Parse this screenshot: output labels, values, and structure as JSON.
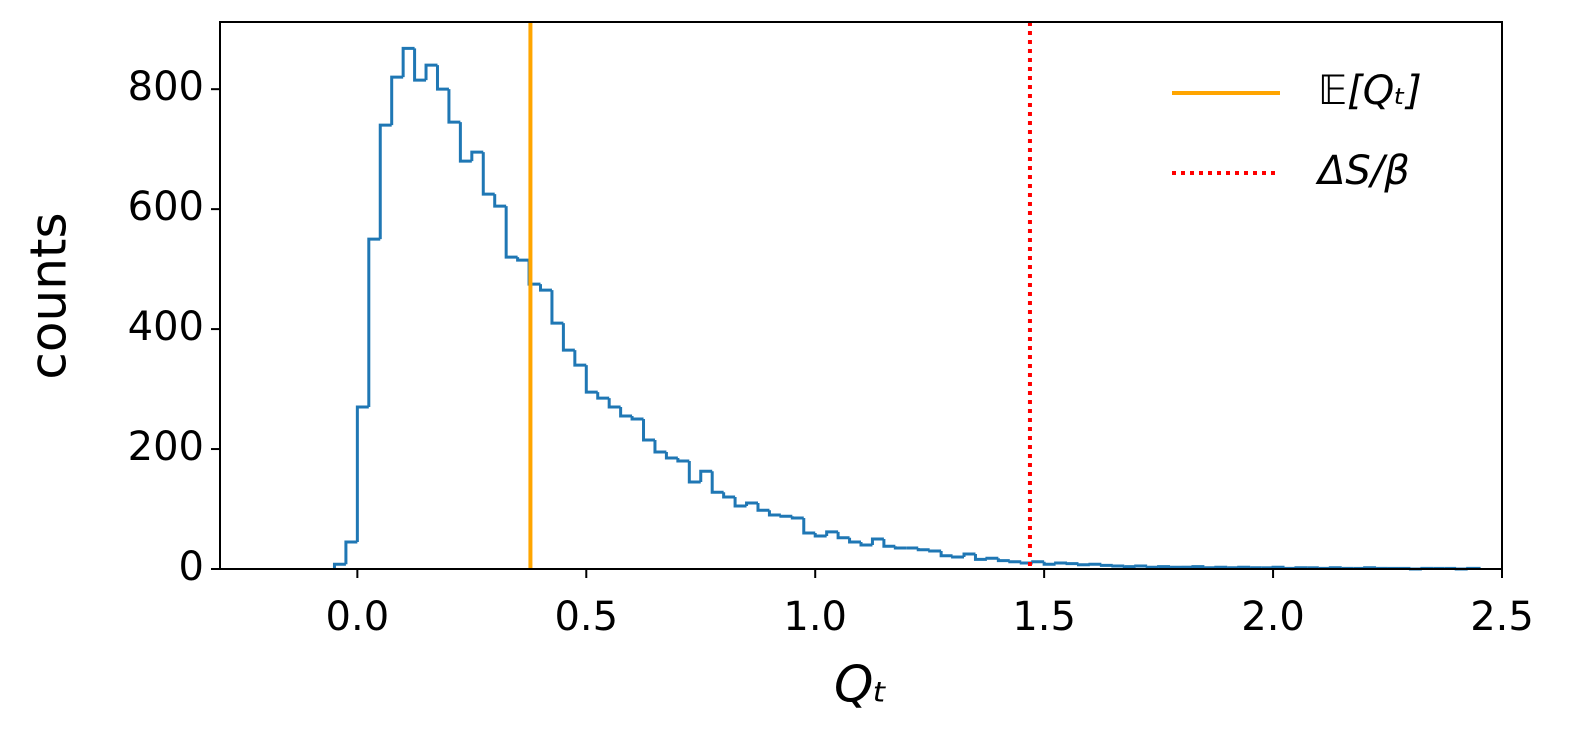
{
  "chart_data": {
    "type": "histogram",
    "xlabel": "Qₜ",
    "ylabel": "counts",
    "bins": [
      -0.05,
      -0.025,
      0,
      0.025,
      0.05,
      0.075,
      0.1,
      0.125,
      0.15,
      0.175,
      0.2,
      0.225,
      0.25,
      0.275,
      0.3,
      0.325,
      0.35,
      0.375,
      0.4,
      0.425,
      0.45,
      0.475,
      0.5,
      0.525,
      0.55,
      0.575,
      0.6,
      0.625,
      0.65,
      0.675,
      0.7,
      0.725,
      0.75,
      0.775,
      0.8,
      0.825,
      0.85,
      0.875,
      0.9,
      0.925,
      0.95,
      0.975,
      1.0,
      1.025,
      1.05,
      1.075,
      1.1,
      1.125,
      1.15,
      1.175,
      1.2,
      1.225,
      1.25,
      1.275,
      1.3,
      1.325,
      1.35,
      1.375,
      1.4,
      1.425,
      1.45,
      1.475,
      1.5,
      1.525,
      1.55,
      1.575,
      1.6,
      1.625,
      1.65,
      1.675,
      1.7,
      1.725,
      1.75,
      1.775,
      1.8,
      1.825,
      1.85,
      1.875,
      1.9,
      1.925,
      1.95,
      1.975,
      2.0,
      2.025,
      2.05,
      2.075,
      2.1,
      2.125,
      2.15,
      2.175,
      2.2,
      2.225,
      2.25,
      2.275,
      2.3,
      2.325,
      2.35,
      2.375,
      2.4,
      2.425,
      2.45
    ],
    "values": [
      8,
      45,
      270,
      550,
      740,
      820,
      868,
      815,
      840,
      800,
      745,
      680,
      695,
      625,
      605,
      520,
      515,
      475,
      465,
      410,
      365,
      340,
      295,
      285,
      270,
      255,
      250,
      215,
      195,
      185,
      180,
      145,
      163,
      128,
      120,
      105,
      110,
      98,
      90,
      88,
      85,
      60,
      55,
      62,
      52,
      45,
      40,
      50,
      38,
      35,
      35,
      32,
      30,
      22,
      20,
      25,
      16,
      18,
      14,
      12,
      10,
      12,
      8,
      10,
      9,
      7,
      8,
      6,
      5,
      4,
      5,
      3,
      4,
      3,
      3,
      4,
      2,
      3,
      2,
      3,
      2,
      2,
      3,
      1,
      2,
      2,
      1,
      2,
      1,
      1,
      2,
      1,
      1,
      1,
      0,
      1,
      1,
      1,
      0,
      1
    ],
    "color": "#1f77b4",
    "lines": [
      {
        "name": "𝔼[Qₜ]",
        "value": 0.378,
        "color": "#ffa500",
        "style": "solid"
      },
      {
        "name": "ΔS/β",
        "value": 1.469,
        "color": "#ff0000",
        "style": "dotted"
      }
    ],
    "xlim": [
      -0.3,
      2.5
    ],
    "ylim": [
      0,
      912
    ],
    "xticks": [
      {
        "value": 0,
        "label": "0.0"
      },
      0.5,
      {
        "value": 1,
        "label": "1.0"
      },
      1.5,
      {
        "value": 2,
        "label": "2.0"
      },
      2.5
    ],
    "yticks": [
      0,
      200,
      400,
      600,
      800
    ],
    "legend": "upper right"
  }
}
